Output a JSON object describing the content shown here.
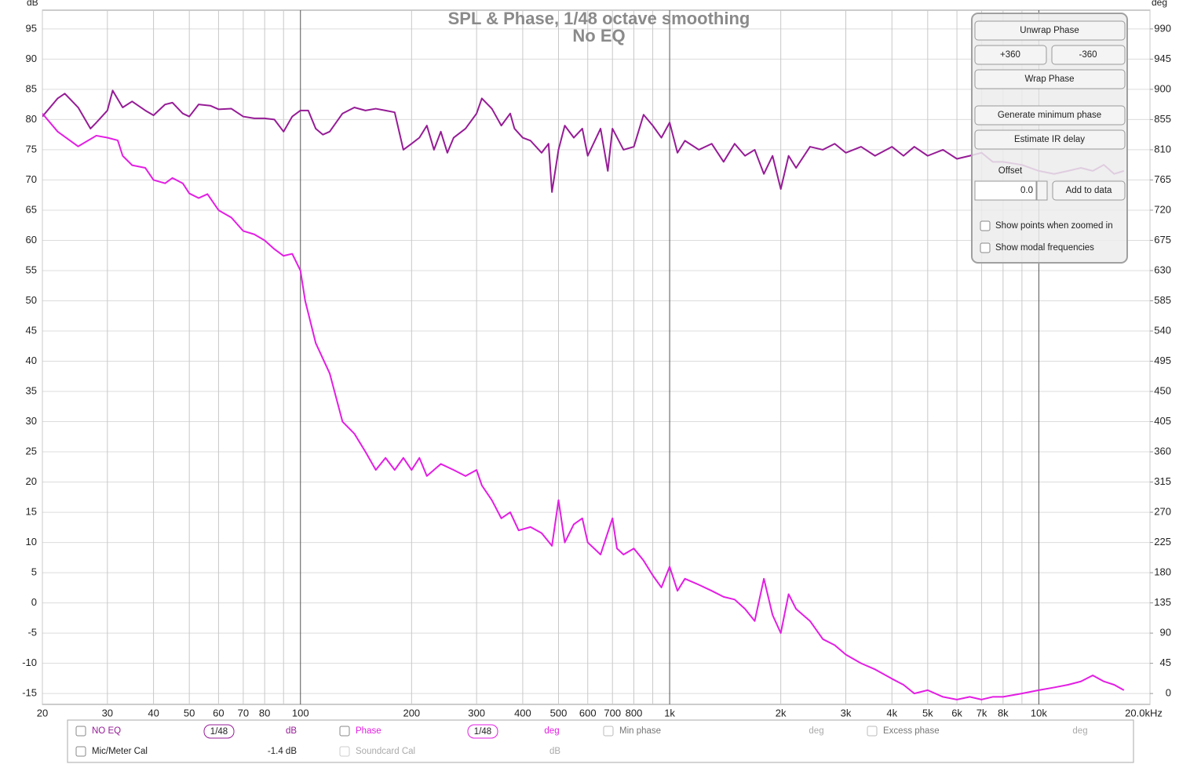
{
  "chart_data": {
    "type": "line",
    "title": "SPL & Phase, 1/48 octave smoothing",
    "subtitle": "No EQ",
    "ylabel": "dB",
    "y2label": "deg",
    "log_x": true,
    "grid": true,
    "xlim": [
      20,
      20000
    ],
    "ylim": [
      -16.8,
      98.1
    ],
    "y2lim": [
      -16.2,
      1017.9
    ],
    "xticks": [
      20,
      30,
      40,
      50,
      60,
      70,
      80,
      100,
      200,
      300,
      400,
      500,
      600,
      700,
      800,
      {
        "value": 1000,
        "label": "1k"
      },
      {
        "value": 2000,
        "label": "2k"
      },
      {
        "value": 3000,
        "label": "3k"
      },
      {
        "value": 4000,
        "label": "4k"
      },
      {
        "value": 5000,
        "label": "5k"
      },
      {
        "value": 6000,
        "label": "6k"
      },
      {
        "value": 7000,
        "label": "7k"
      },
      {
        "value": 8000,
        "label": "8k"
      },
      {
        "value": 10000,
        "label": "10k"
      },
      {
        "value": 20000,
        "label": "20.0kHz"
      }
    ],
    "minor_xticks": [
      90,
      900,
      9000
    ],
    "yticks": [
      -15,
      -10,
      -5,
      0,
      5,
      10,
      15,
      20,
      25,
      30,
      35,
      40,
      45,
      50,
      55,
      60,
      65,
      70,
      75,
      80,
      85,
      90,
      95
    ],
    "y2ticks": [
      0,
      45,
      90,
      135,
      180,
      225,
      270,
      315,
      360,
      405,
      450,
      495,
      540,
      585,
      630,
      675,
      720,
      765,
      810,
      855,
      900,
      945,
      990
    ],
    "series": [
      {
        "name": "NO EQ",
        "color": "#961c96",
        "x": [
          20,
          22,
          23,
          25,
          27,
          28,
          30,
          31,
          33,
          35,
          38,
          40,
          43,
          45,
          48,
          50,
          53,
          57,
          60,
          65,
          70,
          75,
          80,
          85,
          90,
          95,
          100,
          105,
          110,
          115,
          120,
          130,
          140,
          150,
          160,
          170,
          180,
          190,
          200,
          210,
          220,
          230,
          240,
          250,
          260,
          280,
          300,
          310,
          330,
          350,
          370,
          380,
          400,
          420,
          450,
          470,
          480,
          500,
          520,
          550,
          580,
          600,
          650,
          680,
          700,
          750,
          800,
          850,
          900,
          950,
          1000,
          1050,
          1100,
          1200,
          1300,
          1400,
          1500,
          1600,
          1700,
          1800,
          1900,
          2000,
          2100,
          2200,
          2400,
          2600,
          2800,
          3000,
          3300,
          3600,
          4000,
          4300,
          4600,
          5000,
          5500,
          6000,
          6500,
          7000,
          7500,
          8000,
          9000,
          10000,
          11000,
          12000,
          13000,
          14000,
          15000,
          16000,
          17000
        ],
        "values": [
          80.5,
          83.5,
          84.3,
          82,
          78.5,
          79.5,
          81.5,
          84.8,
          82,
          83,
          81.5,
          80.7,
          82.5,
          82.8,
          81,
          80.5,
          82.5,
          82.3,
          81.7,
          81.8,
          80.5,
          80.2,
          80.2,
          80,
          78,
          80.5,
          81.5,
          81.5,
          78.5,
          77.5,
          78,
          81,
          82,
          81.5,
          81.8,
          81.5,
          81.2,
          75,
          76,
          77,
          79,
          75,
          78,
          74.5,
          77,
          78.5,
          81,
          83.5,
          81.8,
          79,
          81,
          78.5,
          77,
          76.5,
          74.5,
          76,
          68,
          75,
          79,
          77,
          78.5,
          74,
          78.5,
          71.5,
          78.5,
          75,
          75.5,
          80.8,
          79,
          77,
          79.5,
          74.5,
          76.5,
          75,
          76,
          73,
          76,
          74,
          75,
          71,
          74,
          68.5,
          74,
          72,
          75.5,
          75,
          76,
          74.5,
          75.5,
          74,
          75.5,
          74,
          75.5,
          74,
          75,
          73.5,
          74,
          74.5,
          73,
          73,
          72.5,
          71.5,
          71,
          71.5,
          72,
          71.5,
          72.5,
          71,
          71.5
        ]
      },
      {
        "name": "Phase",
        "color": "#e31ee3",
        "axis": "y2",
        "x": [
          20,
          22,
          25,
          28,
          30,
          32,
          33,
          35,
          38,
          40,
          43,
          45,
          48,
          50,
          53,
          56,
          60,
          65,
          70,
          75,
          80,
          85,
          90,
          95,
          100,
          103,
          110,
          120,
          130,
          140,
          150,
          160,
          170,
          180,
          190,
          200,
          210,
          220,
          240,
          260,
          280,
          300,
          310,
          330,
          350,
          370,
          390,
          420,
          450,
          480,
          500,
          520,
          550,
          580,
          600,
          650,
          700,
          720,
          750,
          800,
          850,
          900,
          950,
          1000,
          1050,
          1100,
          1200,
          1300,
          1400,
          1500,
          1600,
          1700,
          1800,
          1900,
          2000,
          2100,
          2200,
          2400,
          2600,
          2800,
          3000,
          3300,
          3600,
          4000,
          4300,
          4600,
          5000,
          5500,
          6000,
          6500,
          7000,
          7500,
          8000,
          9000,
          10000,
          11000,
          12000,
          13000,
          14000,
          15000,
          16000,
          17000
        ],
        "values": [
          864,
          837,
          815,
          831,
          828,
          824,
          801,
          787,
          783,
          765,
          760,
          768,
          760,
          745,
          738,
          744,
          720,
          709,
          689,
          684,
          675,
          662,
          652,
          655,
          630,
          585,
          522,
          477,
          405,
          387,
          360,
          333,
          351,
          333,
          351,
          333,
          351,
          324,
          342,
          333,
          324,
          333,
          310,
          288,
          261,
          270,
          243,
          248,
          239,
          220,
          288,
          225,
          252,
          261,
          225,
          207,
          261,
          216,
          207,
          216,
          198,
          176,
          158,
          189,
          153,
          171,
          162,
          153,
          144,
          140,
          126,
          108,
          171,
          117,
          90,
          148,
          126,
          108,
          81,
          72,
          58,
          45,
          36,
          22,
          13,
          0,
          5,
          -5,
          -9,
          -5,
          -9,
          -5,
          -5,
          0,
          5,
          9,
          13,
          18,
          27,
          18,
          13,
          5
        ]
      }
    ]
  },
  "controls": {
    "unwrap": "Unwrap Phase",
    "plus": "+360",
    "minus": "-360",
    "wrap": "Wrap Phase",
    "min_phase": "Generate minimum phase",
    "ir_delay": "Estimate IR delay",
    "offset_label": "Offset",
    "offset_value": "0.0",
    "add": "Add to data",
    "show_points": "Show points when zoomed in",
    "show_modal": "Show modal frequencies"
  },
  "legend_bar": {
    "spl_smoothing": "1/48",
    "spl_unit": "dB",
    "phase_smoothing": "1/48",
    "phase_unit": "deg",
    "min_phase": "Min phase",
    "min_phase_unit": "deg",
    "excess_phase": "Excess phase",
    "excess_phase_unit": "deg",
    "mic_cal": "Mic/Meter Cal",
    "mic_cal_value": "-1.4 dB",
    "soundcard_cal": "Soundcard Cal",
    "soundcard_unit": "dB"
  }
}
